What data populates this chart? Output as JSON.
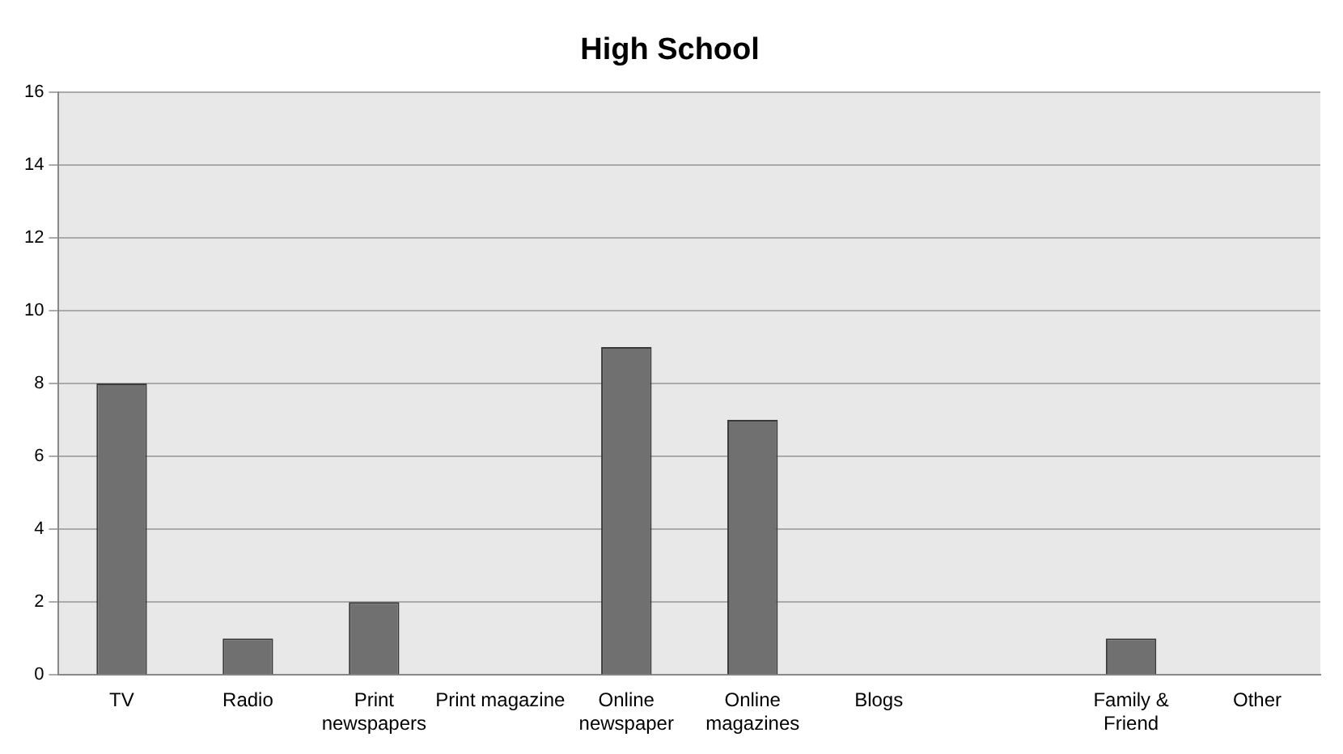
{
  "chart_data": {
    "type": "bar",
    "title": "High School",
    "categories": [
      "TV",
      "Radio",
      "Print newspapers",
      "Print magazine",
      "Online newspaper",
      "Online magazines",
      "Blogs",
      null,
      "Family & Friend",
      "Other"
    ],
    "values": [
      8,
      1,
      2,
      0,
      9,
      7,
      0,
      0,
      1,
      0
    ],
    "color": "#707070",
    "ylim": [
      0,
      16
    ],
    "yticks": [
      0,
      2,
      4,
      6,
      8,
      10,
      12,
      14,
      16
    ],
    "grid": "y",
    "legend": false
  }
}
